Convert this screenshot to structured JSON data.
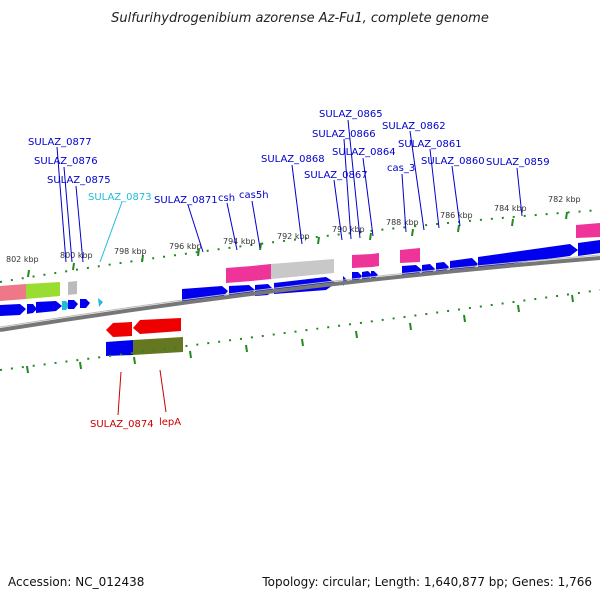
{
  "title": "Sulfurihydrogenibium azorense Az-Fu1, complete genome",
  "footer": {
    "accession": "Accession: NC_012438",
    "summary": "Topology: circular; Length: 1,640,877 bp; Genes: 1,766"
  },
  "colors": {
    "label_blue": "#0000cc",
    "label_red": "#cc0000",
    "label_cyan": "#22bbdd",
    "gene_blue": "#0000ee",
    "tick_green": "#228822",
    "backbone": "#777777"
  },
  "ticks": [
    {
      "label": "802 kbp"
    },
    {
      "label": "800 kbp"
    },
    {
      "label": "798 kbp"
    },
    {
      "label": "796 kbp"
    },
    {
      "label": "794 kbp"
    },
    {
      "label": "792 kbp"
    },
    {
      "label": "790 kbp"
    },
    {
      "label": "788 kbp"
    },
    {
      "label": "786 kbp"
    },
    {
      "label": "784 kbp"
    },
    {
      "label": "782 kbp"
    }
  ],
  "gene_labels": [
    {
      "text": "SULAZ_0877",
      "color": "#0000cc"
    },
    {
      "text": "SULAZ_0876",
      "color": "#0000cc"
    },
    {
      "text": "SULAZ_0875",
      "color": "#0000cc"
    },
    {
      "text": "SULAZ_0873",
      "color": "#22bbdd"
    },
    {
      "text": "SULAZ_0871",
      "color": "#0000cc"
    },
    {
      "text": "csh",
      "color": "#0000cc"
    },
    {
      "text": "cas5h",
      "color": "#0000cc"
    },
    {
      "text": "SULAZ_0868",
      "color": "#0000cc"
    },
    {
      "text": "SULAZ_0867",
      "color": "#0000cc"
    },
    {
      "text": "SULAZ_0866",
      "color": "#0000cc"
    },
    {
      "text": "SULAZ_0865",
      "color": "#0000cc"
    },
    {
      "text": "SULAZ_0864",
      "color": "#0000cc"
    },
    {
      "text": "cas_3",
      "color": "#0000cc"
    },
    {
      "text": "SULAZ_0862",
      "color": "#0000cc"
    },
    {
      "text": "SULAZ_0861",
      "color": "#0000cc"
    },
    {
      "text": "SULAZ_0860",
      "color": "#0000cc"
    },
    {
      "text": "SULAZ_0859",
      "color": "#0000cc"
    },
    {
      "text": "SULAZ_0874",
      "color": "#cc0000"
    },
    {
      "text": "lepA",
      "color": "#cc0000"
    }
  ]
}
